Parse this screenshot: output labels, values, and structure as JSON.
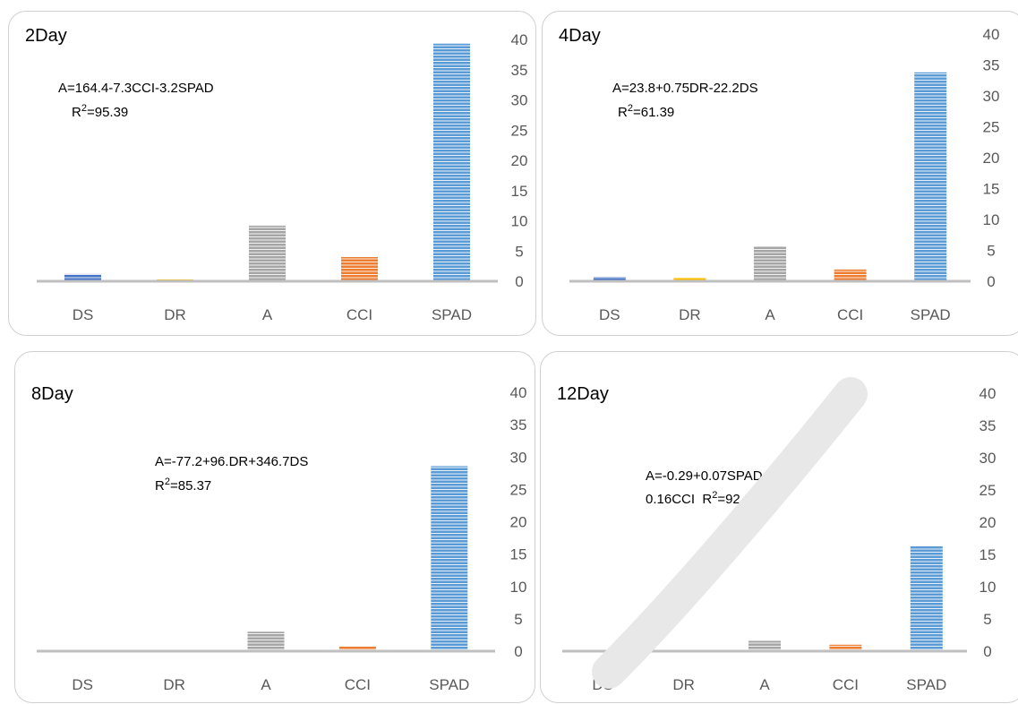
{
  "colors": {
    "DS": "#4472c4",
    "DR": "#ffc000",
    "A": "#a5a5a5",
    "CCI": "#ed7d31",
    "SPAD": "#5b9bd5",
    "axis": "#bfbfbf",
    "border": "#d0d0d0",
    "text": "#595959"
  },
  "chart_data": [
    {
      "type": "bar",
      "title": "2Day",
      "categories": [
        "DS",
        "DR",
        "A",
        "CCI",
        "SPAD"
      ],
      "values": [
        1.2,
        0.3,
        9.2,
        4.0,
        39.3
      ],
      "ylim": [
        0,
        40
      ],
      "yticks": [
        "0",
        "5",
        "10",
        "15",
        "20",
        "25",
        "30",
        "35",
        "40"
      ],
      "equation": {
        "line1": "A=164.4-7.3CCI-3.2SPAD",
        "r_prefix": "R",
        "r_sup": "2",
        "r_value": "=95.39"
      }
    },
    {
      "type": "bar",
      "title": "4Day",
      "categories": [
        "DS",
        "DR",
        "A",
        "CCI",
        "SPAD"
      ],
      "values": [
        0.7,
        0.6,
        5.6,
        1.9,
        33.8
      ],
      "ylim": [
        0,
        40
      ],
      "yticks": [
        "0",
        "5",
        "10",
        "15",
        "20",
        "25",
        "30",
        "35",
        "40"
      ],
      "equation": {
        "line1": "A=23.8+0.75DR-22.2DS",
        "r_prefix": "R",
        "r_sup": "2",
        "r_value": "=61.39"
      }
    },
    {
      "type": "bar",
      "title": "8Day",
      "categories": [
        "DS",
        "DR",
        "A",
        "CCI",
        "SPAD"
      ],
      "values": [
        0.1,
        0.2,
        3.0,
        0.7,
        28.6
      ],
      "ylim": [
        0,
        40
      ],
      "yticks": [
        "0",
        "5",
        "10",
        "15",
        "20",
        "25",
        "30",
        "35",
        "40"
      ],
      "equation": {
        "line1": "A=-77.2+96.DR+346.7DS",
        "r_prefix": "R",
        "r_sup": "2",
        "r_value": "=85.37"
      }
    },
    {
      "type": "bar",
      "title": "12Day",
      "categories": [
        "DS",
        "DR",
        "A",
        "CCI",
        "SPAD"
      ],
      "values": [
        0.1,
        0.2,
        1.6,
        1.0,
        16.3
      ],
      "ylim": [
        0,
        40
      ],
      "yticks": [
        "0",
        "5",
        "10",
        "15",
        "20",
        "25",
        "30",
        "35",
        "40"
      ],
      "equation": {
        "line1": "A=-0.29+0.07SPAD-",
        "line2_prefix": "0.16CCI  R",
        "r_sup": "2",
        "r_value": "=92.84"
      }
    }
  ]
}
